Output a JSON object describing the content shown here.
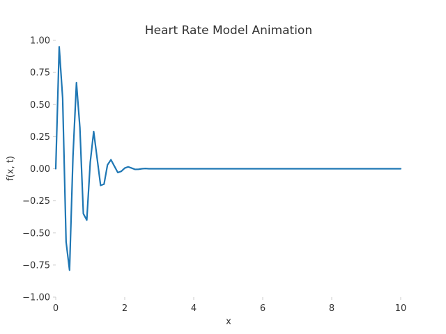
{
  "chart_data": {
    "type": "line",
    "title": "Heart Rate Model Animation",
    "xlabel": "x",
    "ylabel": "f(x, t)",
    "xlim": [
      0,
      10
    ],
    "ylim": [
      -1.0,
      1.0
    ],
    "xticks": [
      "0",
      "2",
      "4",
      "6",
      "8",
      "10"
    ],
    "yticks": [
      "1.00",
      "0.75",
      "0.50",
      "0.25",
      "0.00",
      "−0.25",
      "−0.50",
      "−0.75",
      "−1.00"
    ],
    "grid": false,
    "series": [
      {
        "color": "#1f77b4",
        "x": [
          0.0,
          0.1,
          0.2,
          0.3,
          0.4,
          0.5,
          0.6,
          0.7,
          0.8,
          0.9,
          1.0,
          1.1,
          1.2,
          1.3,
          1.4,
          1.5,
          1.6,
          1.7,
          1.8,
          1.9,
          2.0,
          2.1,
          2.2,
          2.3,
          2.4,
          2.5,
          2.6,
          2.7,
          2.8,
          2.9,
          3.0,
          4.0,
          5.0,
          6.0,
          7.0,
          8.0,
          9.0,
          10.0
        ],
        "y": [
          0.0,
          0.95,
          0.55,
          -0.57,
          -0.79,
          0.1,
          0.67,
          0.32,
          -0.35,
          -0.4,
          0.05,
          0.29,
          0.08,
          -0.13,
          -0.12,
          0.03,
          0.07,
          0.02,
          -0.03,
          -0.02,
          0.005,
          0.015,
          0.005,
          -0.005,
          -0.004,
          0.0,
          0.002,
          0.0,
          0.0,
          0.0,
          0.0,
          0.0,
          0.0,
          0.0,
          0.0,
          0.0,
          0.0,
          0.0
        ]
      }
    ]
  }
}
